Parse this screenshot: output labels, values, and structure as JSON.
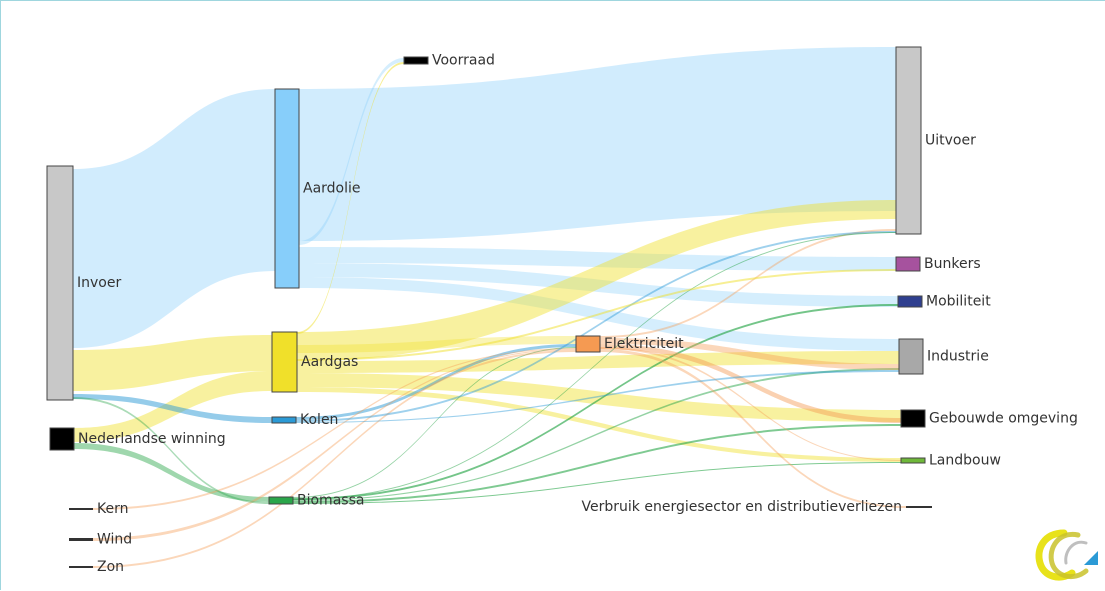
{
  "colors": {
    "oil": "#87cefa",
    "gas": "#f0e02a",
    "electricity": "#f59a52",
    "biomass": "#2aa64a",
    "coal": "#2b9ad6",
    "grey": "#c8c8c8",
    "black": "#000000",
    "bunkers": "#a6529e",
    "mobility": "#2f3f8f",
    "landbouw": "#6fb83a"
  },
  "nodes": [
    {
      "id": "invoer",
      "label": "Invoer",
      "color": "#c8c8c8"
    },
    {
      "id": "nl",
      "label": "Nederlandse winning",
      "color": "#000000"
    },
    {
      "id": "kern",
      "label": "Kern",
      "color": "#333333"
    },
    {
      "id": "wind",
      "label": "Wind",
      "color": "#333333"
    },
    {
      "id": "zon",
      "label": "Zon",
      "color": "#333333"
    },
    {
      "id": "aardolie",
      "label": "Aardolie",
      "color": "#87cefa"
    },
    {
      "id": "voorraad",
      "label": "Voorraad",
      "color": "#000000"
    },
    {
      "id": "aardgas",
      "label": "Aardgas",
      "color": "#f0e02a"
    },
    {
      "id": "kolen",
      "label": "Kolen",
      "color": "#2b9ad6"
    },
    {
      "id": "biomassa",
      "label": "Biomassa",
      "color": "#2aa64a"
    },
    {
      "id": "elektriciteit",
      "label": "Elektriciteit",
      "color": "#f59a52"
    },
    {
      "id": "uitvoer",
      "label": "Uitvoer",
      "color": "#c8c8c8"
    },
    {
      "id": "bunkers",
      "label": "Bunkers",
      "color": "#a6529e"
    },
    {
      "id": "mobiliteit",
      "label": "Mobiliteit",
      "color": "#2f3f8f"
    },
    {
      "id": "industrie",
      "label": "Industrie",
      "color": "#a8a8a8"
    },
    {
      "id": "gebouwde",
      "label": "Gebouwde omgeving",
      "color": "#000000"
    },
    {
      "id": "landbouw",
      "label": "Landbouw",
      "color": "#6fb83a"
    },
    {
      "id": "verbruik",
      "label": "Verbruik energiesector en distributieverliezen",
      "color": "#333333"
    }
  ]
}
